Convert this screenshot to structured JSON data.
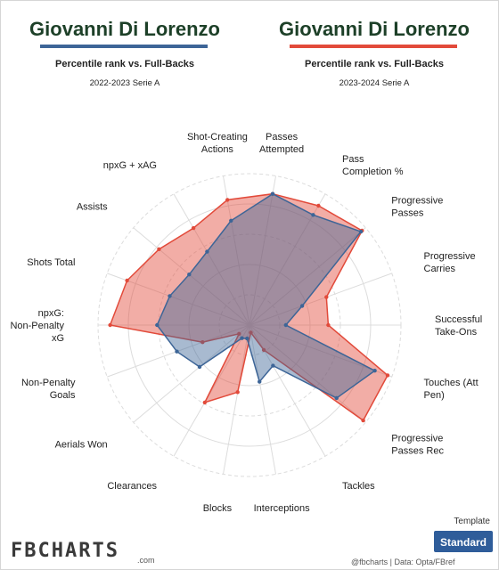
{
  "header": {
    "player_left": "Giovanni Di Lorenzo",
    "player_right": "Giovanni Di Lorenzo",
    "subtitle_left": "Percentile rank vs. Full-Backs",
    "subtitle_right": "Percentile rank vs. Full-Backs",
    "season_left": "2022-2023 Serie A",
    "season_right": "2023-2024 Serie A",
    "color_left": "#3d6597",
    "color_right": "#e24a3a"
  },
  "chart_data": {
    "type": "radar",
    "range": [
      0,
      100
    ],
    "rings": [
      20,
      40,
      60,
      80,
      100
    ],
    "categories": [
      "Passes Attempted",
      "Pass Completion %",
      "Progressive Passes",
      "Progressive Carries",
      "Successful Take-Ons",
      "Touches (Att Pen)",
      "Progressive Passes Rec",
      "Tackles",
      "Interceptions",
      "Blocks",
      "Clearances",
      "Aerials Won",
      "Non-Penalty Goals",
      "npxG: Non-Penalty xG",
      "Shots Total",
      "Assists",
      "npxG + xAG",
      "Shot-Creating Actions"
    ],
    "series": [
      {
        "color": "#3d6597",
        "values": [
          88,
          84,
          96,
          37,
          24,
          88,
          75,
          31,
          38,
          9,
          10,
          43,
          51,
          61,
          56,
          52,
          56,
          70
        ]
      },
      {
        "color": "#e24a3a",
        "values": [
          88,
          91,
          97,
          54,
          52,
          97,
          98,
          19,
          5,
          45,
          59,
          9,
          33,
          92,
          86,
          78,
          74,
          84
        ]
      }
    ]
  },
  "footer": {
    "template_label": "Template",
    "template_button": "Standard",
    "brand": "FBCHARTS",
    "brand_sub": ".com",
    "credit": "@fbcharts  |  Data: Opta/FBref"
  }
}
